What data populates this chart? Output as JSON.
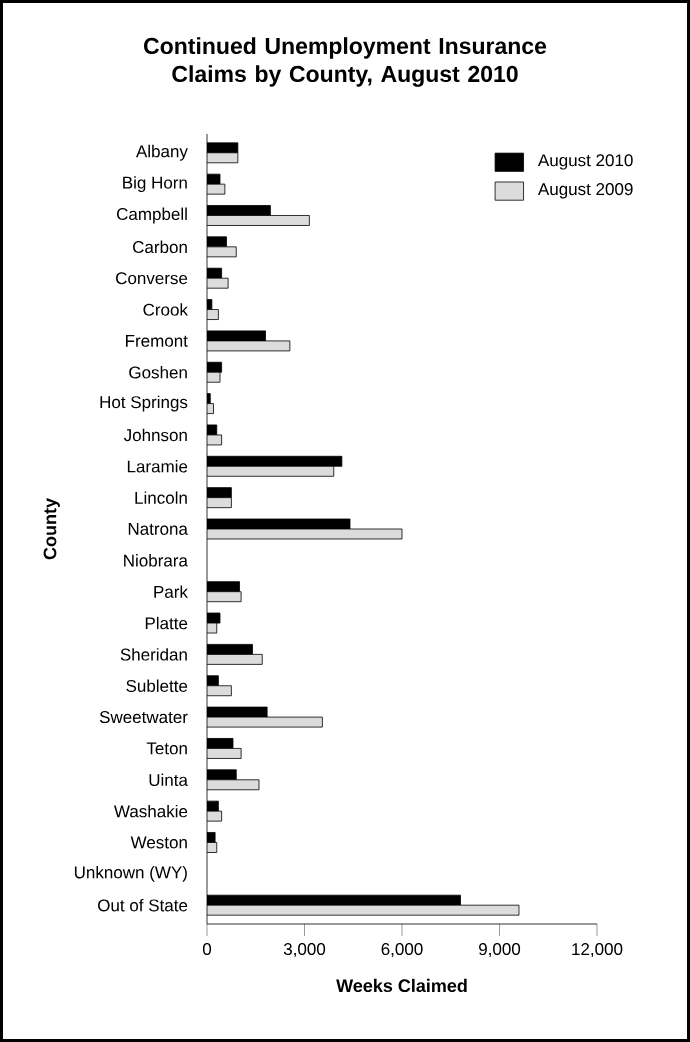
{
  "chart_data": {
    "type": "bar",
    "orientation": "horizontal",
    "title": "Continued Unemployment Insurance Claims by County, August 2010",
    "xlabel": "Weeks Claimed",
    "ylabel": "County",
    "categories": [
      "Albany",
      "Big Horn",
      "Campbell",
      "Carbon",
      "Converse",
      "Crook",
      "Fremont",
      "Goshen",
      "Hot Springs",
      "Johnson",
      "Laramie",
      "Lincoln",
      "Natrona",
      "Niobrara",
      "Park",
      "Platte",
      "Sheridan",
      "Sublette",
      "Sweetwater",
      "Teton",
      "Uinta",
      "Washakie",
      "Weston",
      "Unknown (WY)",
      "Out of State"
    ],
    "series": [
      {
        "name": "August 2010",
        "color": "#000000",
        "values": [
          950,
          400,
          1950,
          600,
          450,
          150,
          1800,
          450,
          100,
          300,
          4150,
          750,
          4400,
          null,
          1000,
          400,
          1400,
          350,
          1850,
          800,
          900,
          350,
          250,
          null,
          7800
        ]
      },
      {
        "name": "August 2009",
        "color": "#dcdcdc",
        "values": [
          950,
          550,
          3150,
          900,
          650,
          350,
          2550,
          400,
          200,
          450,
          3900,
          750,
          6000,
          null,
          1050,
          300,
          1700,
          750,
          3550,
          1050,
          1600,
          450,
          300,
          null,
          9600
        ]
      }
    ],
    "xlim": [
      0,
      12000
    ],
    "xticks": [
      0,
      {
        "value": 3000,
        "label": "3,000"
      },
      {
        "value": 6000,
        "label": "6,000"
      },
      {
        "value": 9000,
        "label": "9,000"
      },
      {
        "value": 12000,
        "label": "12,000"
      }
    ],
    "legend": "top right"
  }
}
